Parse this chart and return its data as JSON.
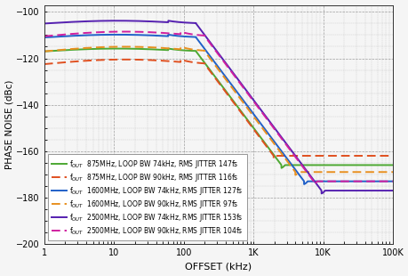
{
  "xlabel": "OFFSET (kHz)",
  "ylabel": "PHASE NOISE (dBc)",
  "ylim": [
    -200,
    -97
  ],
  "yticks": [
    -200,
    -180,
    -160,
    -140,
    -120,
    -100
  ],
  "background_color": "#f5f5f5",
  "curves": [
    {
      "label": "f$_{OUT}$  875MHz, LOOP BW 74kHz, RMS JITTER 147fs",
      "color": "#4da832",
      "linestyle": "solid",
      "flat": -117.0,
      "bump": 1.2,
      "peak_kx": 60,
      "roll_kx": 150,
      "slope": 20,
      "floor": -168,
      "floor_bump": 2.0
    },
    {
      "label": "f$_{OUT}$  875MHz, LOOP BW 90kHz, RMS JITTER 116fs",
      "color": "#e05020",
      "linestyle": "dashed",
      "flat": -122.5,
      "bump": 2.0,
      "peak_kx": 90,
      "roll_kx": 200,
      "slope": 20,
      "floor": -164,
      "floor_bump": 2.0
    },
    {
      "label": "f$_{OUT}$  1600MHz, LOOP BW 74kHz, RMS JITTER 127fs",
      "color": "#2060c8",
      "linestyle": "solid",
      "flat": -111.0,
      "bump": 1.2,
      "peak_kx": 60,
      "roll_kx": 150,
      "slope": 20,
      "floor": -175,
      "floor_bump": 2.0
    },
    {
      "label": "f$_{OUT}$  1600MHz, LOOP BW 90kHz, RMS JITTER 97fs",
      "color": "#e89020",
      "linestyle": "dashed",
      "flat": -117.0,
      "bump": 2.0,
      "peak_kx": 90,
      "roll_kx": 200,
      "slope": 20,
      "floor": -171,
      "floor_bump": 2.0
    },
    {
      "label": "f$_{OUT}$  2500MHz, LOOP BW 74kHz, RMS JITTER 153fs",
      "color": "#5520b0",
      "linestyle": "solid",
      "flat": -105.0,
      "bump": 1.2,
      "peak_kx": 60,
      "roll_kx": 150,
      "slope": 20,
      "floor": -179,
      "floor_bump": 2.0
    },
    {
      "label": "f$_{OUT}$  2500MHz, LOOP BW 90kHz, RMS JITTER 104fs",
      "color": "#d020a0",
      "linestyle": "dashed",
      "flat": -110.5,
      "bump": 2.0,
      "peak_kx": 90,
      "roll_kx": 200,
      "slope": 20,
      "floor": -175,
      "floor_bump": 2.0
    }
  ]
}
